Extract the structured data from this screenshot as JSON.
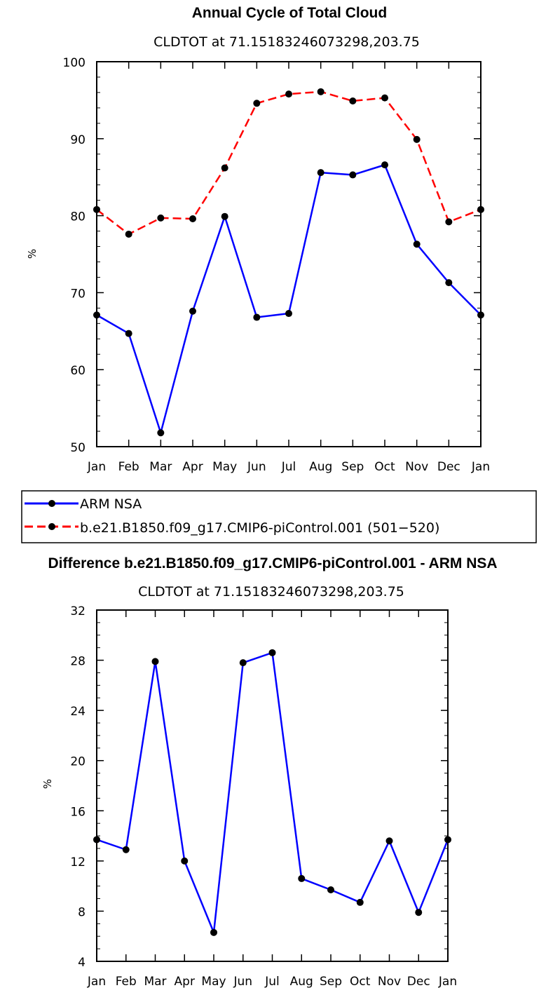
{
  "chart_data": [
    {
      "type": "line",
      "title": "Annual Cycle of Total Cloud",
      "subtitle": "CLDTOT at 71.15183246073298,203.75",
      "xlabel": "",
      "ylabel": "%",
      "ylim": [
        50,
        100
      ],
      "yticks": [
        50,
        60,
        70,
        80,
        90,
        100
      ],
      "categories": [
        "Jan",
        "Feb",
        "Mar",
        "Apr",
        "May",
        "Jun",
        "Jul",
        "Aug",
        "Sep",
        "Oct",
        "Nov",
        "Dec",
        "Jan"
      ],
      "series": [
        {
          "name": "ARM NSA",
          "color": "#0000ff",
          "dash": "solid",
          "values": [
            67.1,
            64.7,
            51.8,
            67.6,
            79.9,
            66.8,
            67.3,
            85.6,
            85.3,
            86.6,
            76.3,
            71.3,
            67.1
          ]
        },
        {
          "name": "b.e21.B1850.f09_g17.CMIP6-piControl.001 (501-520)",
          "color": "#ff0000",
          "dash": "dashed",
          "values": [
            80.8,
            77.6,
            79.7,
            79.6,
            86.2,
            94.6,
            95.8,
            96.1,
            94.9,
            95.3,
            89.9,
            79.2,
            80.8
          ]
        }
      ],
      "legend": {
        "position": "bottom",
        "entries": [
          "ARM NSA",
          "b.e21.B1850.f09_g17.CMIP6-piControl.001 (501−520)"
        ]
      }
    },
    {
      "type": "line",
      "title": "Difference b.e21.B1850.f09_g17.CMIP6-piControl.001 - ARM NSA",
      "subtitle": "CLDTOT at 71.15183246073298,203.75",
      "xlabel": "",
      "ylabel": "%",
      "ylim": [
        4,
        32
      ],
      "yticks": [
        4,
        8,
        12,
        16,
        20,
        24,
        28,
        32
      ],
      "categories": [
        "Jan",
        "Feb",
        "Mar",
        "Apr",
        "May",
        "Jun",
        "Jul",
        "Aug",
        "Sep",
        "Oct",
        "Nov",
        "Dec",
        "Jan"
      ],
      "series": [
        {
          "name": "Difference",
          "color": "#0000ff",
          "dash": "solid",
          "values": [
            13.7,
            12.9,
            27.9,
            12.0,
            6.3,
            27.8,
            28.6,
            10.6,
            9.7,
            8.7,
            13.6,
            7.9,
            13.7
          ]
        }
      ]
    }
  ]
}
